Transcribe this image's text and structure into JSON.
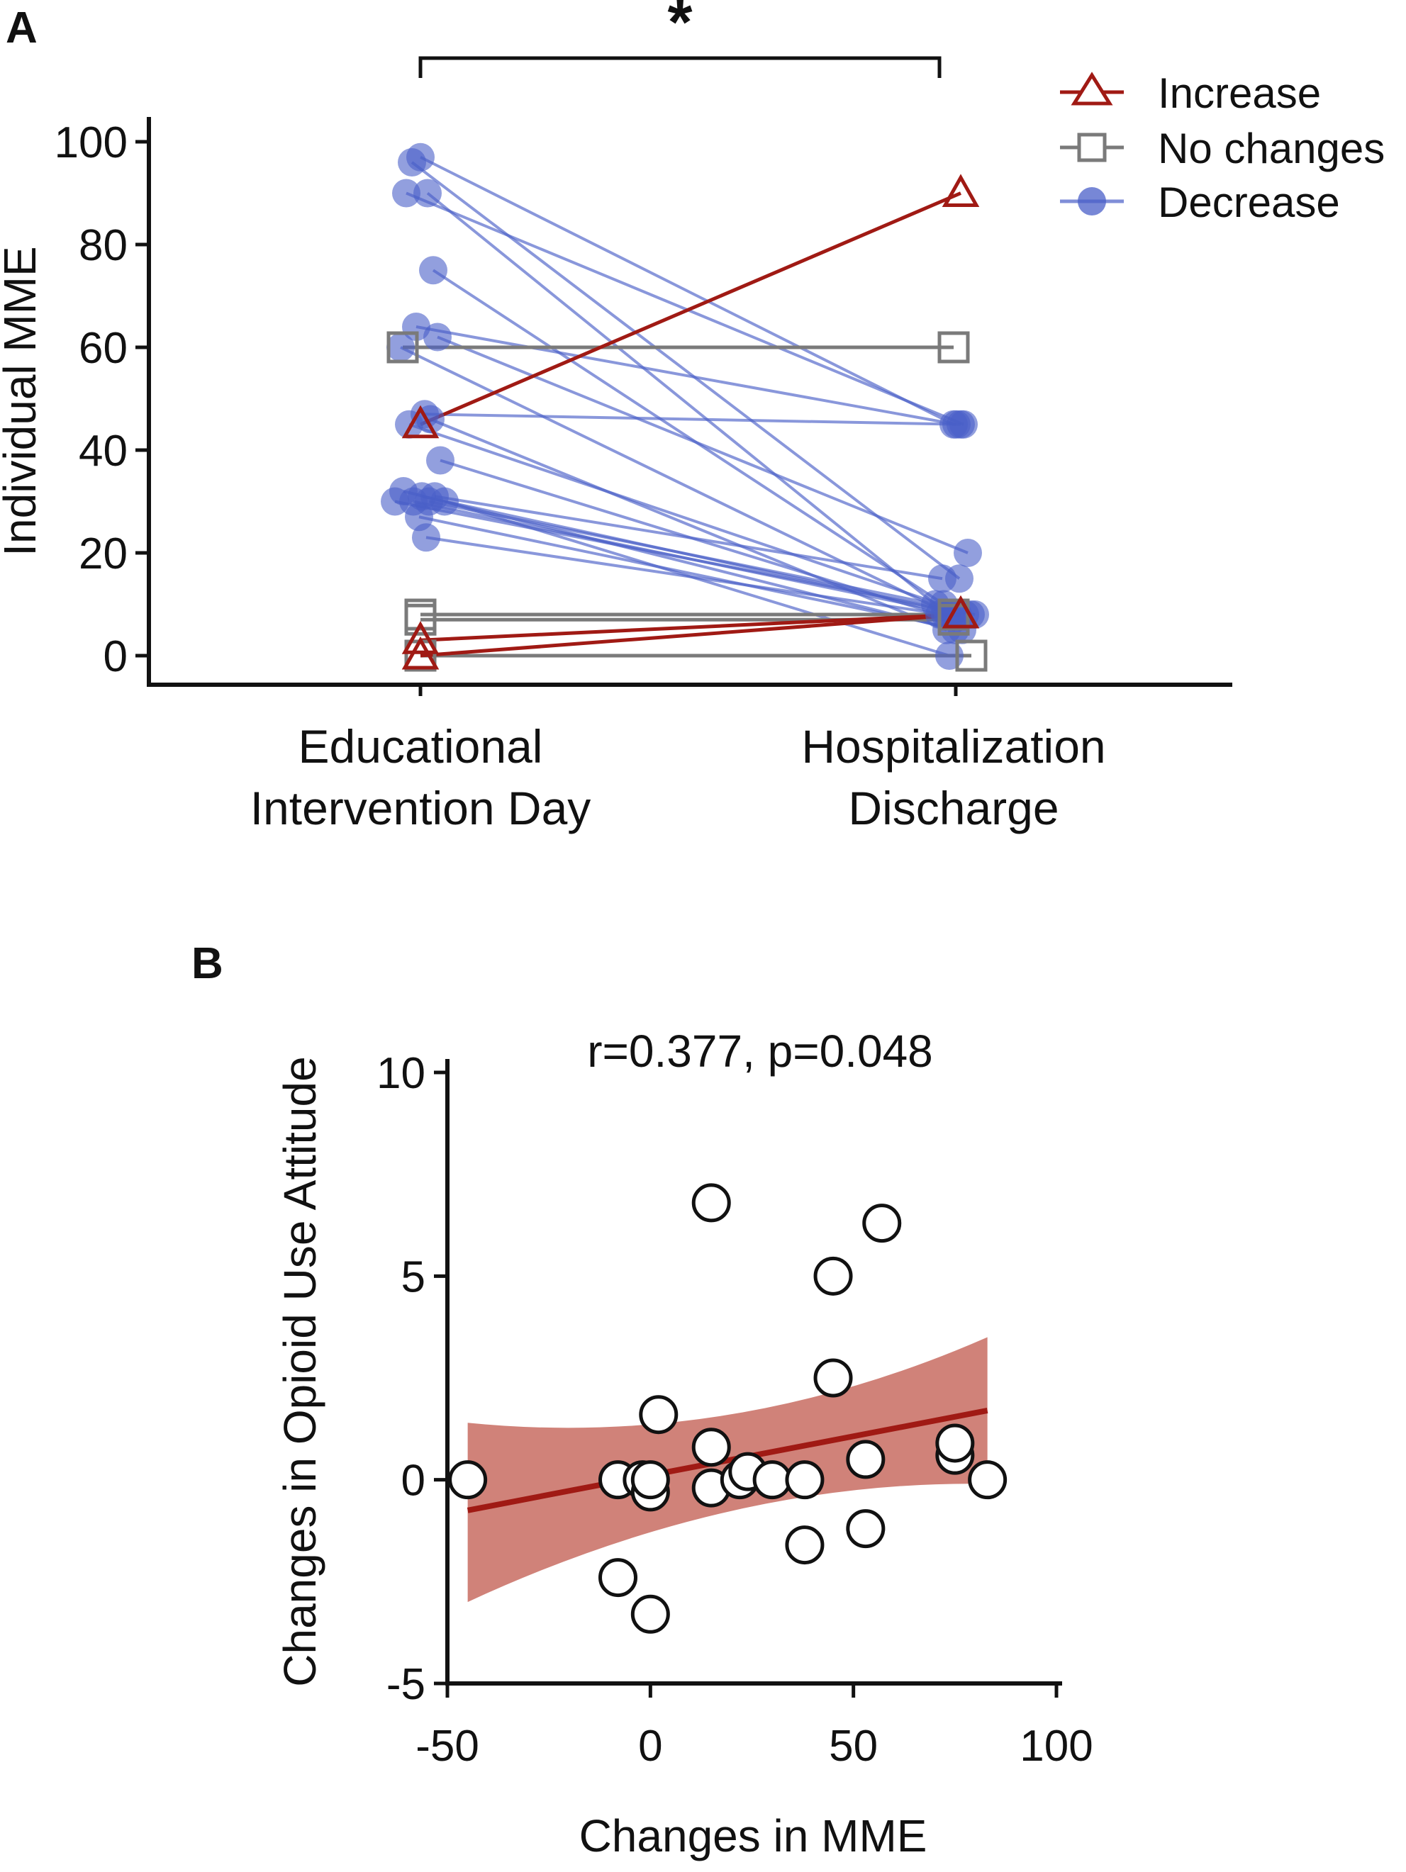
{
  "figure": {
    "panel_a_label": "A",
    "panel_b_label": "B"
  },
  "chart_data": [
    {
      "type": "line",
      "panel": "A",
      "ylabel": "Individual MME",
      "ylim": [
        0,
        100
      ],
      "yticks": [
        0,
        20,
        40,
        60,
        80,
        100
      ],
      "categories": [
        {
          "line1": "Educational",
          "line2": "Intervention Day"
        },
        {
          "line1": "Hospitalization",
          "line2": "Discharge"
        }
      ],
      "significance": "*",
      "legend": {
        "position": "top-right",
        "entries": [
          {
            "label": "Increase",
            "color": "#a01a14",
            "marker": "open-triangle"
          },
          {
            "label": "No changes",
            "color": "#7a7a7a",
            "marker": "open-square"
          },
          {
            "label": "Decrease",
            "color": "#4a5fc8",
            "marker": "filled-circle"
          }
        ]
      },
      "colors": {
        "increase": "#a01a14",
        "no_changes": "#7a7a7a",
        "decrease": "#4a5fc8"
      },
      "series": [
        {
          "name": "Decrease",
          "pairs": [
            [
              97,
              45
            ],
            [
              96,
              15
            ],
            [
              90,
              8
            ],
            [
              90,
              45
            ],
            [
              75,
              10
            ],
            [
              64,
              45
            ],
            [
              62,
              20
            ],
            [
              60,
              8
            ],
            [
              47,
              45
            ],
            [
              46,
              5
            ],
            [
              45,
              8
            ],
            [
              38,
              8
            ],
            [
              32,
              5
            ],
            [
              31,
              8
            ],
            [
              31,
              15
            ],
            [
              30,
              8
            ],
            [
              30,
              0
            ],
            [
              30,
              8
            ],
            [
              30,
              10
            ],
            [
              27,
              5
            ],
            [
              23,
              8
            ]
          ]
        },
        {
          "name": "No changes",
          "pairs": [
            [
              60,
              60
            ],
            [
              8,
              8
            ],
            [
              7,
              7
            ],
            [
              0,
              0
            ]
          ]
        },
        {
          "name": "Increase",
          "pairs": [
            [
              45,
              90
            ],
            [
              3,
              8
            ],
            [
              0,
              8
            ]
          ]
        }
      ]
    },
    {
      "type": "scatter",
      "panel": "B",
      "xlabel": "Changes in MME",
      "ylabel": "Changes in Opioid Use Attitude",
      "xlim": [
        -50,
        100
      ],
      "ylim": [
        -5,
        10
      ],
      "xticks": [
        -50,
        0,
        50,
        100
      ],
      "yticks": [
        -5,
        0,
        5,
        10
      ],
      "annotation": "r=0.377, p=0.048",
      "regression": {
        "x_range": [
          -45,
          83
        ],
        "y_start": -0.75,
        "y_end": 1.7,
        "ci_at_start": [
          -3.0,
          1.4
        ],
        "ci_at_end": [
          -0.1,
          3.5
        ],
        "color": "#a01a14"
      },
      "points": [
        {
          "x": -45,
          "y": 0
        },
        {
          "x": -8,
          "y": -2.4
        },
        {
          "x": -8,
          "y": 0
        },
        {
          "x": -2,
          "y": 0
        },
        {
          "x": 0,
          "y": -3.3
        },
        {
          "x": 0,
          "y": -0.3
        },
        {
          "x": 0,
          "y": 0
        },
        {
          "x": 2,
          "y": 1.6
        },
        {
          "x": 15,
          "y": 6.8
        },
        {
          "x": 15,
          "y": 0.8
        },
        {
          "x": 15,
          "y": -0.2
        },
        {
          "x": 22,
          "y": 0
        },
        {
          "x": 24,
          "y": 0.2
        },
        {
          "x": 30,
          "y": 0
        },
        {
          "x": 38,
          "y": 0
        },
        {
          "x": 38,
          "y": -1.6
        },
        {
          "x": 45,
          "y": 5.0
        },
        {
          "x": 45,
          "y": 2.5
        },
        {
          "x": 53,
          "y": 0.5
        },
        {
          "x": 53,
          "y": -1.2
        },
        {
          "x": 57,
          "y": 6.3
        },
        {
          "x": 75,
          "y": 0.6
        },
        {
          "x": 75,
          "y": 0.9
        },
        {
          "x": 83,
          "y": 0
        }
      ]
    }
  ]
}
